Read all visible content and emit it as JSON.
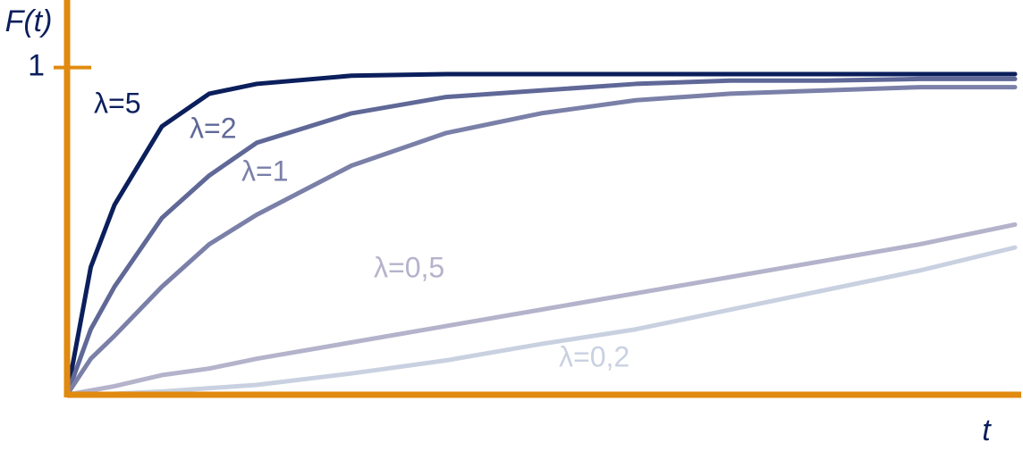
{
  "chart_data": {
    "type": "line",
    "x_label": "t",
    "y_label": "F(t)",
    "axis_color": "#e08a10",
    "x": [
      0,
      0.25,
      0.5,
      1,
      1.5,
      2,
      3,
      4,
      5,
      6,
      7,
      8,
      9,
      10
    ],
    "xlim": [
      0,
      10
    ],
    "ylim": [
      0,
      1.19
    ],
    "yticks": [
      1
    ],
    "series": [
      {
        "name": "λ=5",
        "color": "#0b1f5c",
        "values": [
          0,
          0.39,
          0.58,
          0.82,
          0.92,
          0.95,
          0.975,
          0.98,
          0.98,
          0.98,
          0.98,
          0.98,
          0.98,
          0.98
        ]
      },
      {
        "name": "λ=2",
        "color": "#5f6897",
        "values": [
          0,
          0.2,
          0.33,
          0.54,
          0.67,
          0.77,
          0.86,
          0.91,
          0.93,
          0.95,
          0.96,
          0.96,
          0.965,
          0.965
        ]
      },
      {
        "name": "λ=1",
        "color": "#7a80a8",
        "values": [
          0,
          0.11,
          0.18,
          0.33,
          0.46,
          0.55,
          0.7,
          0.8,
          0.86,
          0.9,
          0.92,
          0.93,
          0.94,
          0.94
        ]
      },
      {
        "name": "λ=0,5",
        "color": "#b4b3cb",
        "values": [
          0,
          0.013,
          0.026,
          0.06,
          0.08,
          0.11,
          0.16,
          0.21,
          0.26,
          0.31,
          0.36,
          0.41,
          0.46,
          0.52
        ]
      },
      {
        "name": "λ=0,2",
        "color": "#c9d1e1",
        "values": [
          0,
          0.001,
          0.003,
          0.01,
          0.02,
          0.03,
          0.065,
          0.105,
          0.155,
          0.2,
          0.26,
          0.32,
          0.38,
          0.45
        ]
      }
    ]
  }
}
